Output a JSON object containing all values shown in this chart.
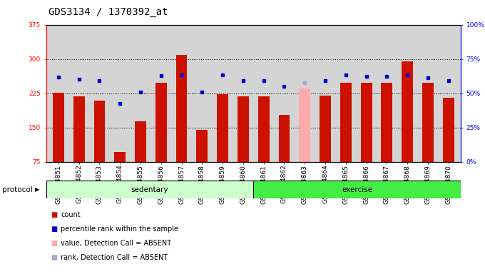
{
  "title": "GDS3134 / 1370392_at",
  "samples": [
    "GSM184851",
    "GSM184852",
    "GSM184853",
    "GSM184854",
    "GSM184855",
    "GSM184856",
    "GSM184857",
    "GSM184858",
    "GSM184859",
    "GSM184860",
    "GSM184861",
    "GSM184862",
    "GSM184863",
    "GSM184864",
    "GSM184865",
    "GSM184866",
    "GSM184867",
    "GSM184868",
    "GSM184869",
    "GSM184870"
  ],
  "bar_values": [
    226,
    218,
    208,
    96,
    163,
    248,
    308,
    145,
    222,
    218,
    218,
    178,
    235,
    220,
    248,
    248,
    248,
    295,
    248,
    215
  ],
  "bar_absent": [
    false,
    false,
    false,
    false,
    false,
    false,
    false,
    false,
    false,
    false,
    false,
    false,
    true,
    false,
    false,
    false,
    false,
    false,
    false,
    false
  ],
  "dot_values": [
    260,
    255,
    252,
    202,
    228,
    263,
    265,
    228,
    265,
    252,
    252,
    240,
    248,
    252,
    265,
    262,
    262,
    265,
    258,
    253
  ],
  "dot_absent": [
    false,
    false,
    false,
    false,
    false,
    false,
    false,
    false,
    false,
    false,
    false,
    false,
    true,
    false,
    false,
    false,
    false,
    false,
    false,
    false
  ],
  "sedentary_count": 10,
  "exercise_count": 10,
  "ylim_left": [
    75,
    375
  ],
  "ylim_right": [
    0,
    100
  ],
  "yticks_left": [
    75,
    150,
    225,
    300,
    375
  ],
  "yticks_right": [
    0,
    25,
    50,
    75,
    100
  ],
  "yticklabels_right": [
    "0%",
    "25%",
    "50%",
    "75%",
    "100%"
  ],
  "bar_color_normal": "#cc1100",
  "bar_color_absent": "#ffaaaa",
  "dot_color_normal": "#0000cc",
  "dot_color_absent": "#aaaacc",
  "bg_color": "#d4d4d4",
  "sedentary_color": "#ccffcc",
  "exercise_color": "#44ee44",
  "grid_color": "#000000",
  "title_fontsize": 10,
  "tick_fontsize": 6.5,
  "legend_items": [
    "count",
    "percentile rank within the sample",
    "value, Detection Call = ABSENT",
    "rank, Detection Call = ABSENT"
  ],
  "legend_colors": [
    "#cc1100",
    "#0000cc",
    "#ffaaaa",
    "#aaaacc"
  ],
  "protocol_label": "protocol",
  "sedentary_label": "sedentary",
  "exercise_label": "exercise"
}
